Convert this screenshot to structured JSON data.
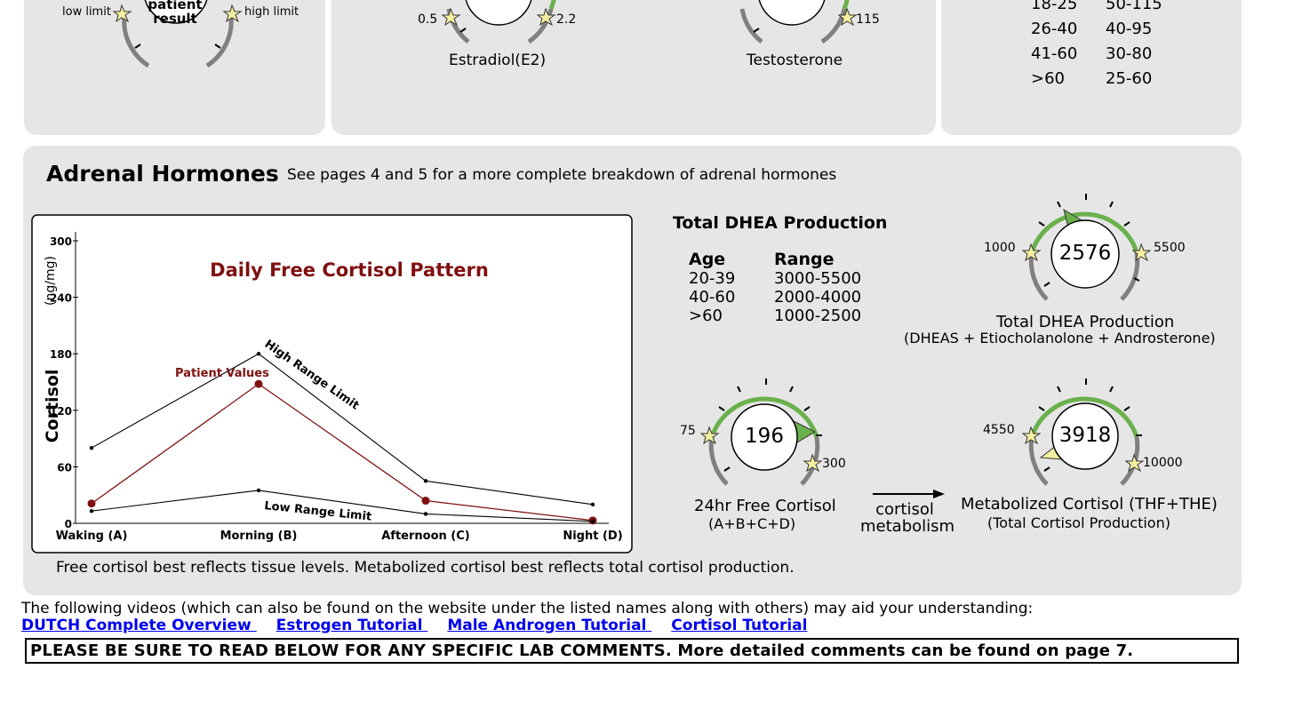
{
  "top": {
    "left_gauge": {
      "center_label_line1": "patient",
      "center_label_line2": "result",
      "low_label": "low limit",
      "high_label": "high limit"
    },
    "estradiol": {
      "low": "0.5",
      "high": "2.2",
      "name": "Estradiol(E2)"
    },
    "testosterone": {
      "high": "115",
      "name": "Testosterone"
    },
    "age_ranges": [
      {
        "age": "18-25",
        "range": "50-115"
      },
      {
        "age": "26-40",
        "range": "40-95"
      },
      {
        "age": "41-60",
        "range": "30-80"
      },
      {
        "age": ">60",
        "range": "25-60"
      }
    ]
  },
  "adrenal": {
    "title": "Adrenal Hormones",
    "subtitle": "See pages 4 and 5 for a more complete breakdown of adrenal hormones",
    "footnote": "Free cortisol best reflects tissue levels. Metabolized cortisol best reflects total cortisol production.",
    "dhea": {
      "heading": "Total DHEA Production",
      "col_age": "Age",
      "col_range": "Range",
      "rows": [
        {
          "age": "20-39",
          "range": "3000-5500"
        },
        {
          "age": "40-60",
          "range": "2000-4000"
        },
        {
          "age": ">60",
          "range": "1000-2500"
        }
      ],
      "value": "2576",
      "low": "1000",
      "high": "5500",
      "name": "Total DHEA Production",
      "sub": "(DHEAS + Etiocholanolone + Androsterone)"
    },
    "free_cortisol": {
      "value": "196",
      "low": "75",
      "high": "300",
      "name": "24hr Free Cortisol",
      "sub": "(A+B+C+D)"
    },
    "arrow_label_line1": "cortisol",
    "arrow_label_line2": "metabolism",
    "metabolized": {
      "value": "3918",
      "low": "4550",
      "high": "10000",
      "name": "Metabolized Cortisol (THF+THE)",
      "sub": "(Total Cortisol Production)"
    }
  },
  "chart_data": {
    "type": "line",
    "title": "Daily Free Cortisol Pattern",
    "ylabel": "Cortisol",
    "yunit": "(ng/mg)",
    "ylim": [
      0,
      300
    ],
    "yticks": [
      "0",
      "60",
      "120",
      "180",
      "240",
      "300"
    ],
    "yticks_values": [
      0,
      60,
      120,
      180,
      240,
      300
    ],
    "categories": [
      "Waking (A)",
      "Morning (B)",
      "Afternoon (C)",
      "Night (D)"
    ],
    "series": [
      {
        "name": "High Range Limit",
        "values": [
          80,
          180,
          45,
          20
        ],
        "color": "#000000"
      },
      {
        "name": "Patient Values",
        "values": [
          21,
          148,
          24,
          3
        ],
        "color": "#7f1010"
      },
      {
        "name": "Low Range Limit",
        "values": [
          13,
          35,
          10,
          2
        ],
        "color": "#000000"
      }
    ]
  },
  "videos": {
    "intro": "The following videos (which can also be found on the website under the listed names along with others) may aid your understanding:",
    "links": [
      "DUTCH Complete Overview ",
      "Estrogen Tutorial ",
      "Male Androgen Tutorial ",
      "Cortisol Tutorial "
    ]
  },
  "notice": "PLEASE BE SURE TO READ BELOW FOR ANY SPECIFIC LAB COMMENTS. More detailed comments can be found on page 7.",
  "colors": {
    "panel": "#e6e6e6",
    "green_arc": "#6ab04c",
    "gray_arc": "#808080",
    "star": "#f5f0a0",
    "chart_red": "#7f1010",
    "link": "#0000ee"
  }
}
